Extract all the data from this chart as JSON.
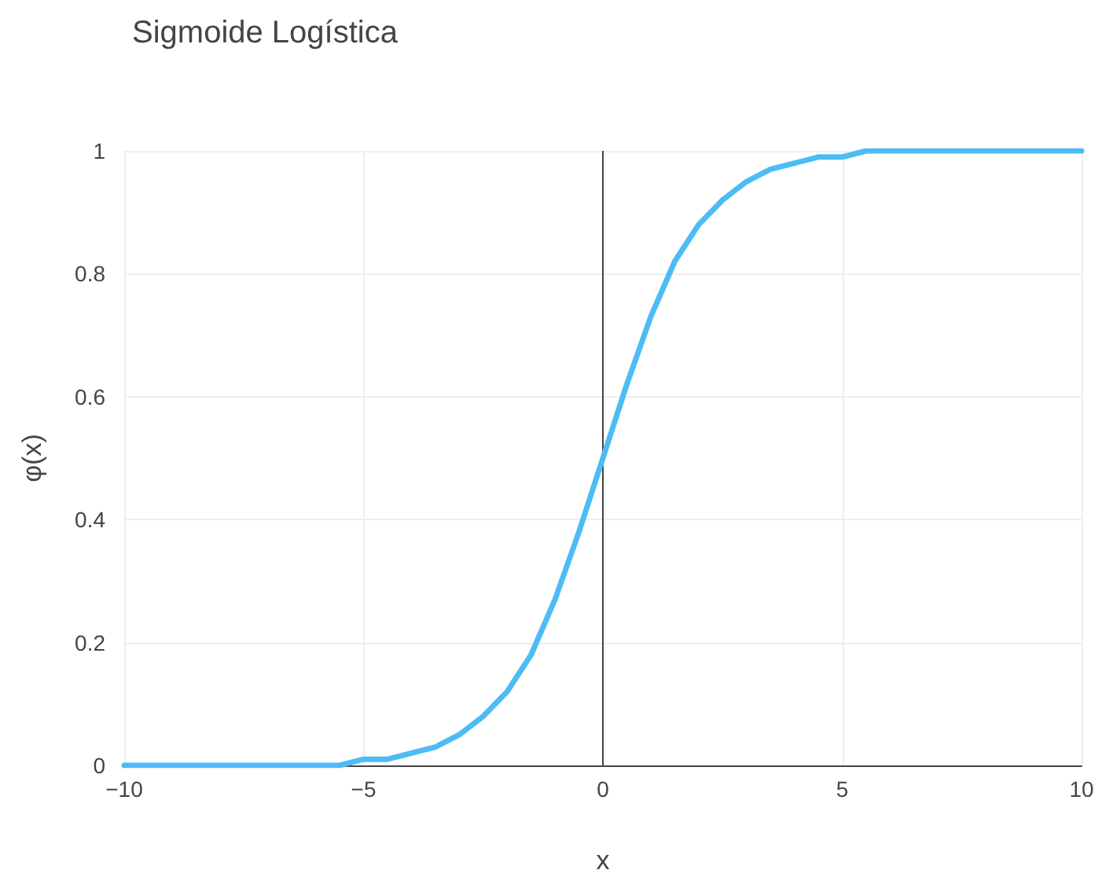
{
  "chart_data": {
    "type": "line",
    "title": "Sigmoide Logística",
    "xlabel": "x",
    "ylabel": "φ(x)",
    "x": [
      -10,
      -9,
      -8,
      -7,
      -6,
      -5.5,
      -5,
      -4.5,
      -4,
      -3.5,
      -3,
      -2.5,
      -2,
      -1.5,
      -1,
      -0.5,
      0,
      0.5,
      1,
      1.5,
      2,
      2.5,
      3,
      3.5,
      4,
      4.5,
      5,
      5.5,
      6,
      7,
      8,
      9,
      10
    ],
    "series": [
      {
        "color": "#4dbcf5",
        "values": [
          0,
          0,
          0,
          0,
          0,
          0,
          0.01,
          0.01,
          0.02,
          0.03,
          0.05,
          0.08,
          0.12,
          0.18,
          0.27,
          0.38,
          0.5,
          0.62,
          0.73,
          0.82,
          0.88,
          0.92,
          0.95,
          0.97,
          0.98,
          0.99,
          0.99,
          1,
          1,
          1,
          1,
          1,
          1
        ]
      }
    ],
    "xlim": [
      -10,
      10
    ],
    "ylim": [
      0,
      1
    ],
    "xticks": [
      {
        "value": -10,
        "label": "−10"
      },
      {
        "value": -5,
        "label": "−5"
      },
      0,
      5,
      10
    ],
    "yticks": [
      0,
      0.2,
      0.4,
      0.6,
      0.8,
      1
    ],
    "ref_lines": [
      {
        "axis": "x",
        "value": 0,
        "color": "#444444"
      }
    ],
    "grid": true,
    "marker": "none"
  }
}
